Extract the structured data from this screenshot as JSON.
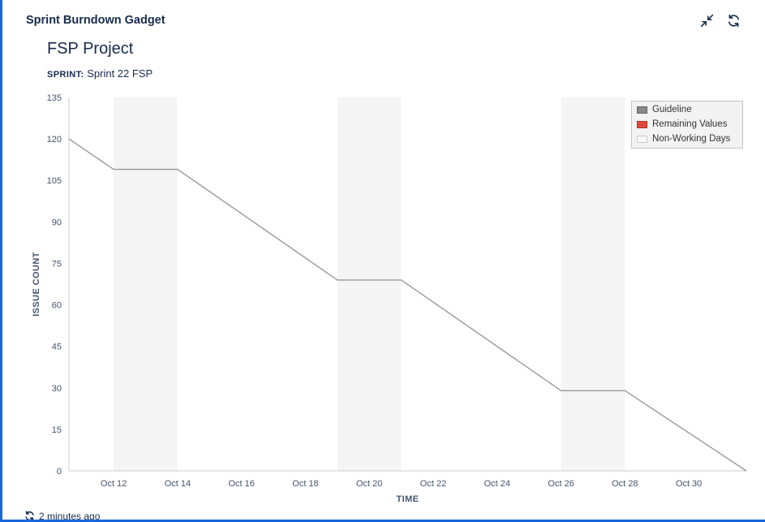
{
  "gadget": {
    "title": "Sprint Burndown Gadget"
  },
  "header": {
    "project_title": "FSP Project",
    "sprint_label": "SPRINT:",
    "sprint_value": "Sprint 22 FSP"
  },
  "footer": {
    "updated": "2 minutes ago"
  },
  "colors": {
    "accent_blue": "#1868DB",
    "title_text": "#172B4D",
    "axis_text": "#44546F",
    "axis_line": "#cccccc",
    "band": "#f5f5f5",
    "legend_bg": "#f3f3f3",
    "legend_border": "#c4c4c4"
  },
  "chart_data": {
    "type": "line",
    "title": "FSP Project",
    "subtitle": "Sprint 22 FSP",
    "xlabel": "TIME",
    "ylabel": "ISSUE COUNT",
    "grid": false,
    "legend_position": "top-right",
    "ylim": [
      0,
      135
    ],
    "yticks": [
      0,
      15,
      30,
      45,
      60,
      75,
      90,
      105,
      120,
      135
    ],
    "xlim": [
      10.6,
      31.8
    ],
    "x_unit": "October date (day number)",
    "xticks": [
      {
        "x": 12,
        "label": "Oct 12"
      },
      {
        "x": 14,
        "label": "Oct 14"
      },
      {
        "x": 16,
        "label": "Oct 16"
      },
      {
        "x": 18,
        "label": "Oct 18"
      },
      {
        "x": 20,
        "label": "Oct 20"
      },
      {
        "x": 22,
        "label": "Oct 22"
      },
      {
        "x": 24,
        "label": "Oct 24"
      },
      {
        "x": 26,
        "label": "Oct 26"
      },
      {
        "x": 28,
        "label": "Oct 28"
      },
      {
        "x": 30,
        "label": "Oct 30"
      }
    ],
    "non_working_days": [
      {
        "from": 12,
        "to": 14,
        "label": "Oct 12 - Oct 14"
      },
      {
        "from": 19,
        "to": 21,
        "label": "Oct 19 - Oct 21"
      },
      {
        "from": 26,
        "to": 28,
        "label": "Oct 26 - Oct 28"
      }
    ],
    "series": [
      {
        "name": "Guideline",
        "color": "#999999",
        "points": [
          {
            "x": 10.6,
            "y": 120
          },
          {
            "x": 12,
            "y": 109
          },
          {
            "x": 14,
            "y": 109
          },
          {
            "x": 19,
            "y": 69
          },
          {
            "x": 21,
            "y": 69
          },
          {
            "x": 26,
            "y": 29
          },
          {
            "x": 28,
            "y": 29
          },
          {
            "x": 31.8,
            "y": 0
          }
        ]
      },
      {
        "name": "Remaining Values",
        "color": "#e2483d",
        "points": []
      }
    ],
    "legend": [
      {
        "label": "Guideline",
        "swatch": "#888888",
        "swatch_border": "#666666"
      },
      {
        "label": "Remaining Values",
        "swatch": "#e2483d",
        "swatch_border": "#a8372e"
      },
      {
        "label": "Non-Working Days",
        "swatch": "#f7f7f7",
        "swatch_border": "#cccccc"
      }
    ]
  }
}
